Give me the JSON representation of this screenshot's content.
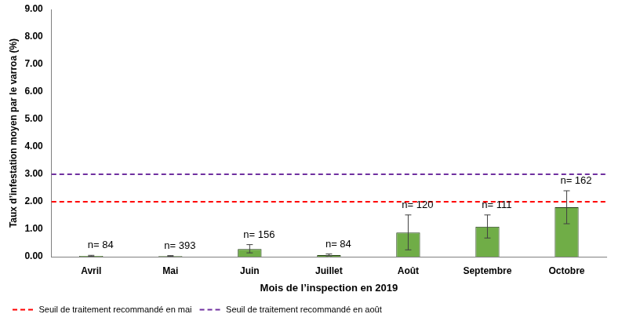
{
  "chart_data": {
    "type": "bar",
    "categories": [
      "Avril",
      "Mai",
      "Juin",
      "Juillet",
      "Août",
      "Septembre",
      "Octobre"
    ],
    "values": [
      0.03,
      0.02,
      0.28,
      0.06,
      0.88,
      1.09,
      1.8
    ],
    "error_low": [
      0.01,
      0.01,
      0.14,
      0.03,
      0.25,
      0.68,
      1.2
    ],
    "error_high": [
      0.05,
      0.04,
      0.44,
      0.1,
      1.52,
      1.52,
      2.4
    ],
    "n_labels": [
      "n= 84",
      "n= 393",
      "n= 156",
      "n= 84",
      "n= 120",
      "n= 111",
      "n= 162"
    ],
    "color": "#70ad47",
    "x_label": "Mois de l’inspection en 2019",
    "y_label": "Taux d’infestation moyen par le varroa (%)",
    "ylim": [
      0,
      9
    ],
    "yticks": [
      {
        "value": 0,
        "label": "0.00"
      },
      {
        "value": 1,
        "label": "1.00"
      },
      {
        "value": 2,
        "label": "2.00"
      },
      {
        "value": 3,
        "label": "3.00"
      },
      {
        "value": 4,
        "label": "4.00"
      },
      {
        "value": 5,
        "label": "5.00"
      },
      {
        "value": 6,
        "label": "6.00"
      },
      {
        "value": 7,
        "label": "7.00"
      },
      {
        "value": 8,
        "label": "8.00"
      },
      {
        "value": 9,
        "label": "9.00"
      }
    ],
    "reference_lines": [
      {
        "name": "Seuil de traitement recommandé en mai",
        "value": 2,
        "color": "#ff0000",
        "line_style": "dashed"
      },
      {
        "name": "Seuil de traitement recommandé en août",
        "value": 3,
        "color": "#7030a0",
        "line_style": "dashed"
      }
    ],
    "legend": "bottom-left",
    "grid": false
  }
}
